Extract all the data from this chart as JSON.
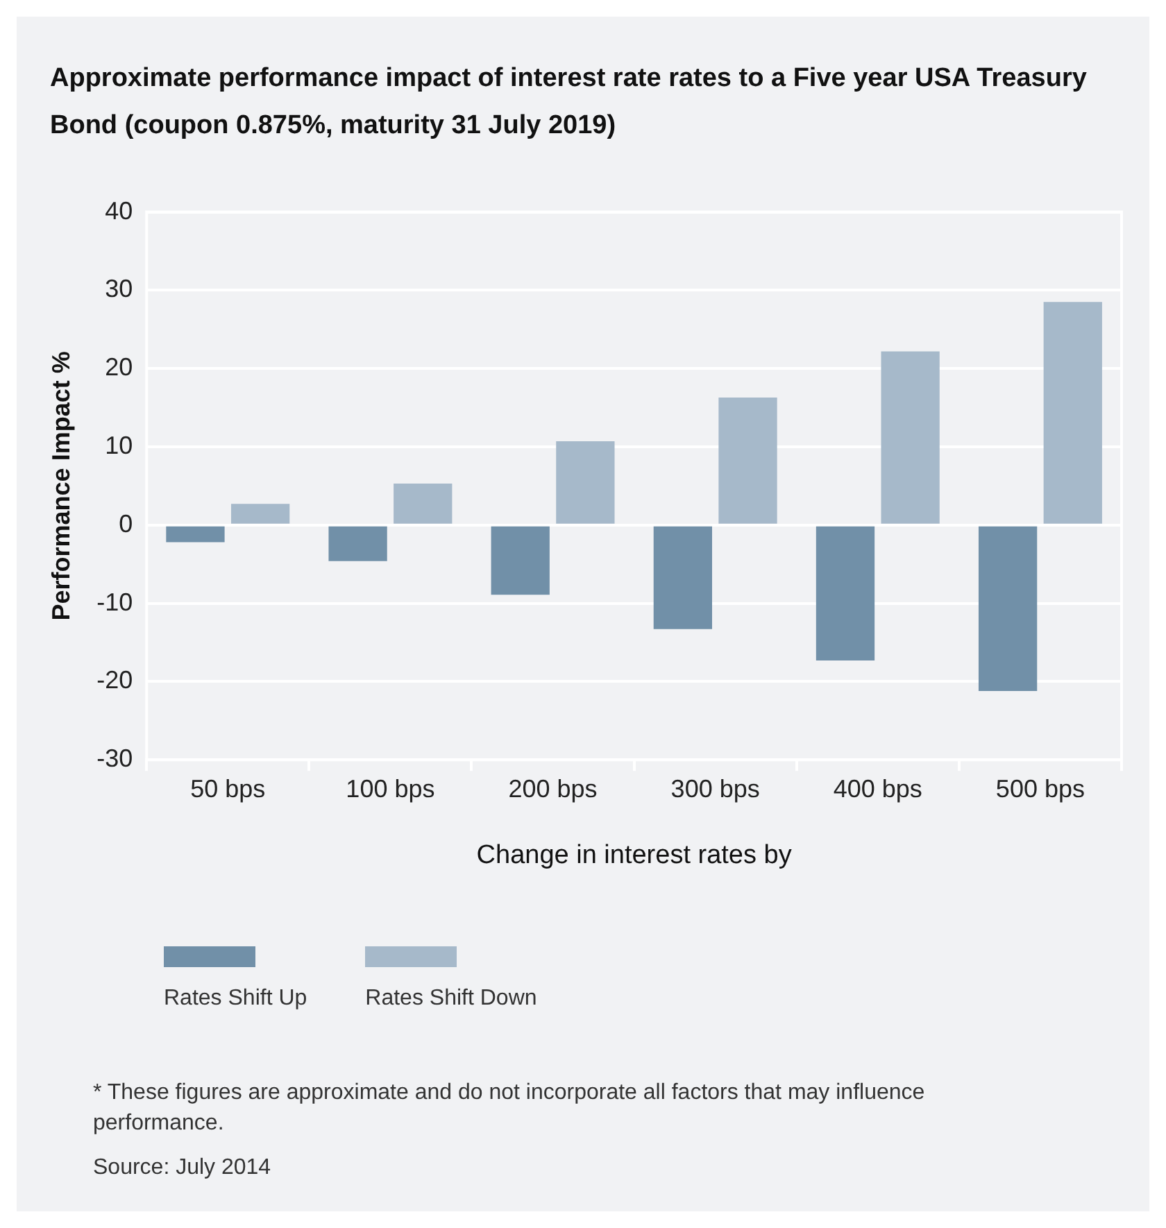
{
  "chart_data": {
    "type": "bar",
    "title": "Approximate performance impact of interest rate rates to a Five year USA Treasury Bond (coupon 0.875%, maturity 31 July 2019)",
    "xlabel": "Change in interest rates by",
    "ylabel": "Performance Impact %",
    "categories": [
      "50 bps",
      "100 bps",
      "200 bps",
      "300 bps",
      "400 bps",
      "500 bps"
    ],
    "series": [
      {
        "name": "Rates Shift Up",
        "color": "#7190a8",
        "values": [
          -2.2,
          -4.6,
          -8.9,
          -13.3,
          -17.3,
          -21.2
        ]
      },
      {
        "name": "Rates Shift Down",
        "color": "#a6b9ca",
        "values": [
          2.7,
          5.3,
          10.7,
          16.3,
          22.2,
          28.5
        ]
      }
    ],
    "ylim": [
      -30,
      40
    ],
    "yticks": [
      -30,
      -20,
      -10,
      0,
      10,
      20,
      30,
      40
    ],
    "grid": "y",
    "legend": "bottom",
    "annotations": [
      "*   These figures are approximate and do not incorporate all factors that may influence performance.",
      "Source: July 2014"
    ]
  }
}
